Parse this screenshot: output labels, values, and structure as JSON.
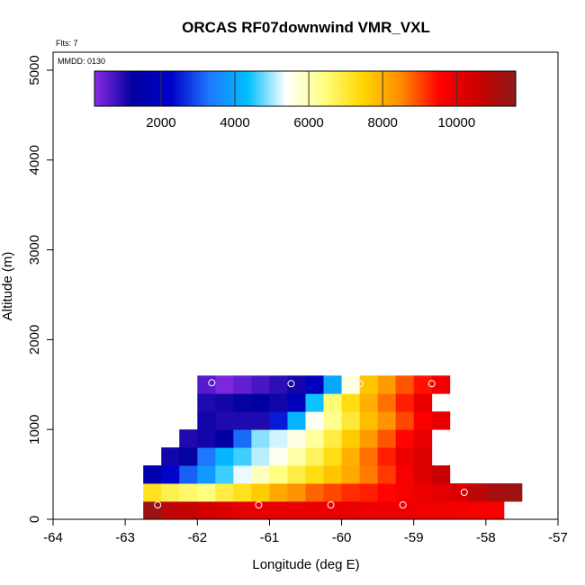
{
  "chart_data": {
    "type": "heatmap",
    "title": "ORCAS RF07downwind VMR_VXL",
    "annotations": {
      "flights": "Flts: 7",
      "mmdd": "MMDD: 0130"
    },
    "xlabel": "Longitude (deg E)",
    "ylabel": "Altitude (m)",
    "xlim": [
      -64,
      -57
    ],
    "ylim": [
      0,
      5200
    ],
    "x_ticks": [
      -64,
      -63,
      -62,
      -61,
      -60,
      -59,
      -58,
      -57
    ],
    "x_tick_labels": [
      "-64",
      "-63",
      "-62",
      "-61",
      "-60",
      "-59",
      "-58",
      "-57"
    ],
    "y_ticks": [
      0,
      1000,
      2000,
      3000,
      4000,
      5000
    ],
    "y_tick_labels": [
      "0",
      "1000",
      "2000",
      "3000",
      "4000",
      "5000"
    ],
    "colorbar": {
      "range": [
        200,
        11600
      ],
      "ticks": [
        2000,
        4000,
        6000,
        8000,
        10000
      ],
      "tick_labels": [
        "2000",
        "4000",
        "6000",
        "8000",
        "10000"
      ],
      "colors": [
        "#8a2be2",
        "#0000a0",
        "#0000c8",
        "#1e78ff",
        "#00bfff",
        "#ffffff",
        "#ffff80",
        "#ffd700",
        "#ff8c00",
        "#ff0000",
        "#cd0000",
        "#8b1a1a"
      ]
    },
    "cell_width_deg": 0.25,
    "cell_height_m": 200,
    "rows": [
      {
        "alt": 0,
        "lon_start": -62.75,
        "values": [
          11300,
          10800,
          10700,
          10500,
          10300,
          10100,
          10050,
          10000,
          10000,
          10000,
          10000,
          9950,
          9900,
          9900,
          9850,
          9800,
          9800,
          9750,
          9700,
          9600
        ]
      },
      {
        "alt": 200,
        "lon_start": -62.75,
        "values": [
          7200,
          6800,
          6600,
          6400,
          6900,
          7200,
          7600,
          8100,
          8400,
          8800,
          9000,
          9200,
          9300,
          9500,
          9700,
          9900,
          10100,
          10300,
          10800,
          11100,
          11300
        ]
      },
      {
        "alt": 400,
        "lon_start": -62.75,
        "values": [
          1600,
          2300,
          3100,
          3800,
          4600,
          5300,
          5900,
          6400,
          6900,
          7300,
          7700,
          8100,
          8600,
          9100,
          9700,
          10200,
          10600
        ]
      },
      {
        "alt": 600,
        "lon_start": -62.5,
        "values": [
          1100,
          1200,
          3300,
          4200,
          4600,
          5100,
          5500,
          6100,
          6700,
          7300,
          8000,
          8700,
          9300,
          9900,
          10200
        ]
      },
      {
        "alt": 800,
        "lon_start": -62.25,
        "values": [
          1000,
          1100,
          1300,
          3200,
          4900,
          5200,
          5600,
          6200,
          6900,
          7600,
          8300,
          8900,
          9500,
          10000
        ]
      },
      {
        "alt": 1000,
        "lon_start": -62.0,
        "values": [
          1100,
          1000,
          1000,
          1000,
          2500,
          4200,
          5500,
          6300,
          7000,
          7800,
          8400,
          9000,
          9600,
          10000
        ]
      },
      {
        "alt": 1200,
        "lon_start": -62.0,
        "values": [
          1000,
          1100,
          1200,
          1300,
          1100,
          1900,
          4400,
          6500,
          7300,
          8000,
          8700,
          9300,
          10000
        ]
      },
      {
        "alt": 1400,
        "lon_start": -62.0,
        "values": [
          600,
          300,
          500,
          700,
          900,
          1100,
          2000,
          4000,
          5600,
          7700,
          8300,
          8900,
          9400,
          9800
        ]
      }
    ],
    "markers": [
      {
        "lon": -62.55,
        "alt": 160
      },
      {
        "lon": -61.15,
        "alt": 160
      },
      {
        "lon": -60.15,
        "alt": 160
      },
      {
        "lon": -59.15,
        "alt": 160
      },
      {
        "lon": -58.3,
        "alt": 300
      },
      {
        "lon": -62.7,
        "alt": 740
      },
      {
        "lon": -61.8,
        "alt": 1520
      },
      {
        "lon": -60.7,
        "alt": 1510
      },
      {
        "lon": -59.75,
        "alt": 1510
      },
      {
        "lon": -58.75,
        "alt": 1510
      }
    ]
  }
}
